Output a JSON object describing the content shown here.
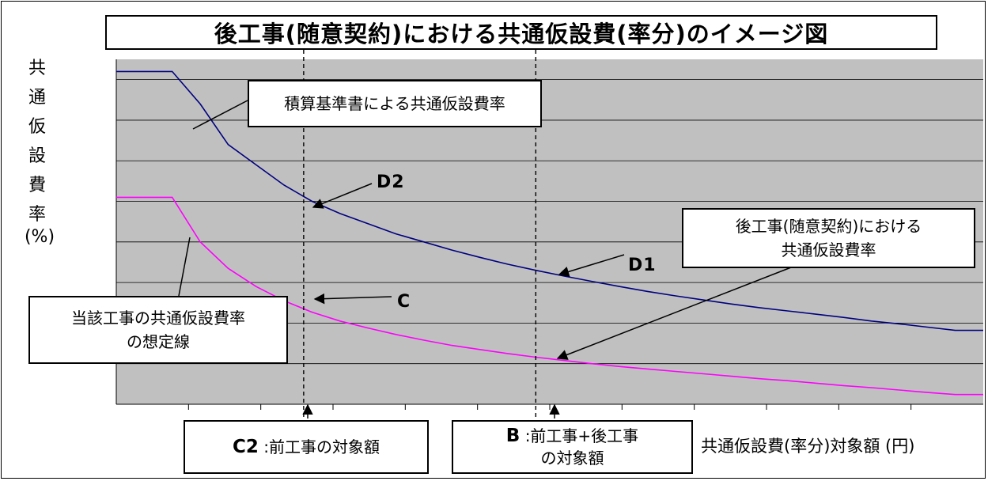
{
  "title": "後工事(随意契約)における共通仮設費(率分)のイメージ図",
  "ylabel_chars": [
    "共",
    "通",
    "仮",
    "設",
    "費",
    "率"
  ],
  "yunit": "(%)",
  "xlabel": "共通仮設費(率分)対象額 (円)",
  "callouts": {
    "standard": "積算基準書による共通仮設費率",
    "afterwork_line1": "後工事(随意契約)における",
    "afterwork_line2": "共通仮設費率",
    "assumed_line1": "当該工事の共通仮設費率",
    "assumed_line2": "の想定線"
  },
  "markers": {
    "d2": "D2",
    "d1": "D1",
    "c": "C"
  },
  "xboxes": {
    "c2_key": "C2",
    "c2_text": ":前工事の対象額",
    "b_key": "B",
    "b_text_line1": ":前工事+後工事",
    "b_text_line2": "の対象額"
  },
  "colors": {
    "plot_bg": "#c0c0c0",
    "standard_line": "#000080",
    "assumed_line": "#ff00ff",
    "grid": "#000000"
  },
  "chart_data": {
    "type": "line",
    "grid": true,
    "x_ticks_labeled": false,
    "y_ticks_labeled": false,
    "series": [
      {
        "x": [
          0,
          1,
          2,
          3,
          4,
          5,
          6,
          7,
          8,
          9,
          10,
          11,
          12,
          13,
          14,
          15,
          16,
          17,
          18,
          19,
          20,
          21,
          22,
          23,
          24,
          25,
          26,
          27,
          28,
          29,
          30,
          31
        ],
        "y": [
          8.2,
          8.2,
          8.2,
          7.4,
          6.4,
          5.9,
          5.4,
          5.0,
          4.7,
          4.45,
          4.2,
          4.0,
          3.8,
          3.62,
          3.45,
          3.3,
          3.16,
          3.03,
          2.9,
          2.78,
          2.67,
          2.57,
          2.47,
          2.38,
          2.3,
          2.22,
          2.14,
          2.05,
          1.98,
          1.9,
          1.82,
          1.82
        ]
      },
      {
        "x": [
          0,
          1,
          2,
          3,
          4,
          5,
          6,
          7,
          8,
          9,
          10,
          11,
          12,
          13,
          14,
          15,
          16,
          17,
          18,
          19,
          20,
          21,
          22,
          23,
          24,
          25,
          26,
          27,
          28,
          29,
          30,
          31
        ],
        "y": [
          5.1,
          5.1,
          5.1,
          4.0,
          3.35,
          2.9,
          2.55,
          2.27,
          2.05,
          1.88,
          1.72,
          1.58,
          1.45,
          1.35,
          1.25,
          1.16,
          1.08,
          1.0,
          0.93,
          0.87,
          0.81,
          0.75,
          0.69,
          0.63,
          0.58,
          0.52,
          0.46,
          0.41,
          0.35,
          0.29,
          0.24,
          0.24
        ]
      }
    ],
    "ylim": [
      0,
      8.5
    ],
    "xlim": [
      0,
      31
    ],
    "vlines_x": [
      6.7,
      15.0
    ]
  }
}
